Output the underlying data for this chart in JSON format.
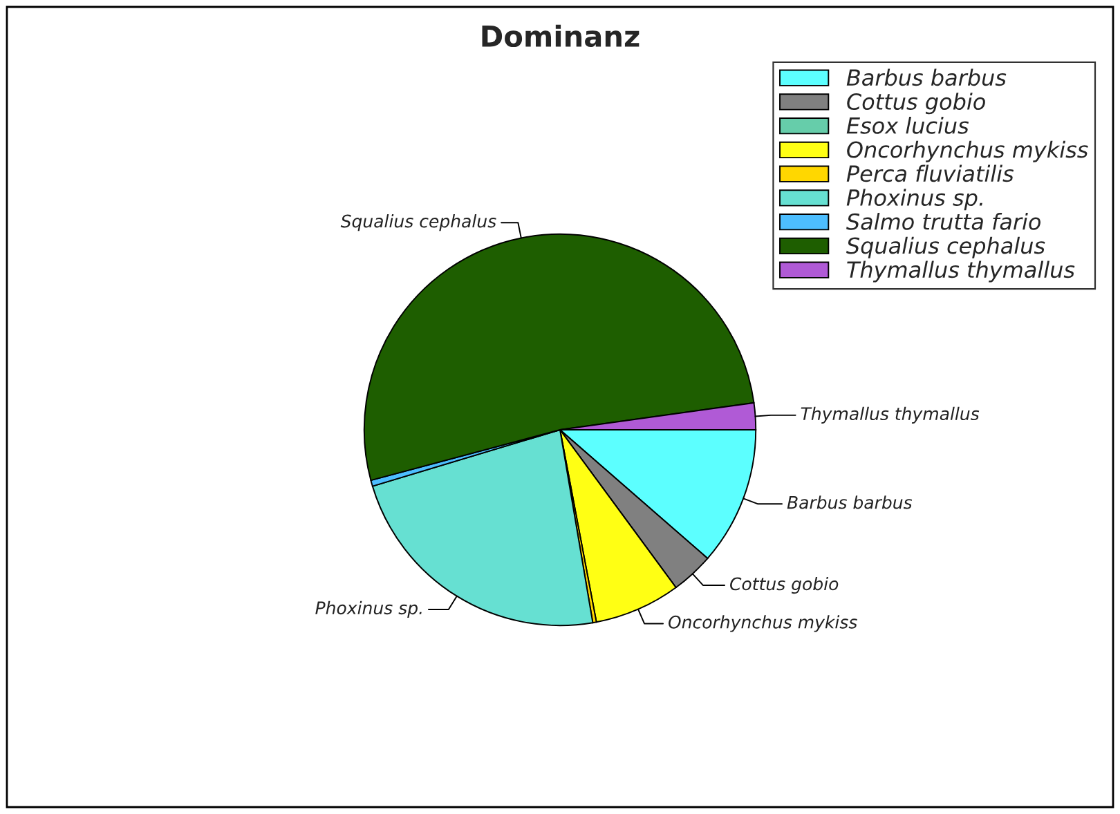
{
  "chart_data": {
    "type": "pie",
    "title": "Dominanz",
    "categories": [
      "Barbus barbus",
      "Cottus gobio",
      "Esox lucius",
      "Oncorhynchus mykiss",
      "Perca fluviatilis",
      "Phoxinus sp.",
      "Salmo trutta fario",
      "Squalius cephalus",
      "Thymallus thymallus"
    ],
    "values": [
      11.4,
      3.5,
      null,
      7.1,
      0.3,
      23.0,
      0.5,
      51.9,
      2.2
    ],
    "colors": [
      "#5cffff",
      "#808080",
      "#66cdaa",
      "#ffff14",
      "#ffd700",
      "#66e0d2",
      "#4dbeff",
      "#1e5e00",
      "#b05ad6"
    ],
    "legend": "top right"
  }
}
